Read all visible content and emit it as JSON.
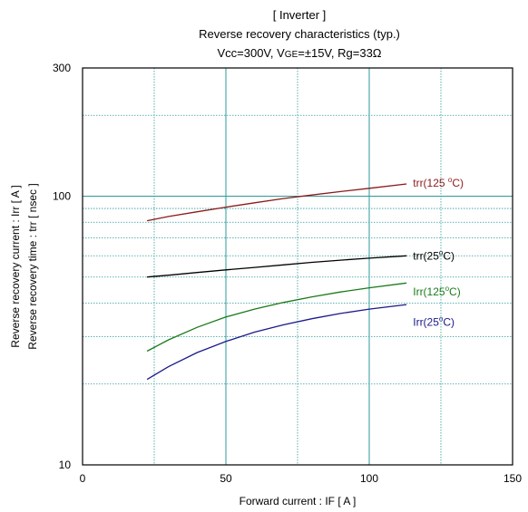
{
  "chart_data": {
    "type": "line",
    "title_lines": [
      "[ Inverter ]",
      "Reverse recovery characteristics  (typ.)"
    ],
    "conditions": {
      "vcc": "Vcc=300V, ",
      "vge_prefix": "V",
      "vge_sub": "GE",
      "vge_value": "=±15V, Rg=33Ω"
    },
    "xlabel": "Forward current  :  IF  [ A ]",
    "ylabel_lines": [
      "Reverse recovery current  :  Irr  [ A ]",
      "Reverse recovery time  :  trr  [ nsec ]"
    ],
    "xlim": [
      0,
      150
    ],
    "ylim": [
      10,
      300
    ],
    "yscale": "log",
    "x_ticks": [
      {
        "value": 0,
        "label": "0"
      },
      {
        "value": 50,
        "label": "50"
      },
      {
        "value": 100,
        "label": "100"
      },
      {
        "value": 150,
        "label": "150"
      }
    ],
    "y_ticks": [
      {
        "value": 10,
        "label": "10"
      },
      {
        "value": 100,
        "label": "100"
      },
      {
        "value": 300,
        "label": "300"
      }
    ],
    "grid": true,
    "series": [
      {
        "name": "trr(125 °C)",
        "color": "#8b1a1a",
        "points": [
          [
            22.5,
            81
          ],
          [
            30,
            84
          ],
          [
            40,
            87.5
          ],
          [
            50,
            91
          ],
          [
            60,
            94.5
          ],
          [
            70,
            98
          ],
          [
            80,
            101
          ],
          [
            90,
            104
          ],
          [
            100,
            107
          ],
          [
            113,
            111
          ]
        ]
      },
      {
        "name": "trr(25°C)",
        "color": "#000000",
        "points": [
          [
            22.5,
            50
          ],
          [
            30,
            50.8
          ],
          [
            40,
            52
          ],
          [
            50,
            53.2
          ],
          [
            60,
            54.3
          ],
          [
            70,
            55.5
          ],
          [
            80,
            56.7
          ],
          [
            90,
            57.8
          ],
          [
            100,
            58.8
          ],
          [
            113,
            60
          ]
        ]
      },
      {
        "name": "Irr(125°C)",
        "color": "#1a7a1a",
        "points": [
          [
            22.5,
            26.5
          ],
          [
            30,
            29.2
          ],
          [
            40,
            32.5
          ],
          [
            50,
            35.5
          ],
          [
            60,
            38
          ],
          [
            70,
            40.2
          ],
          [
            80,
            42.2
          ],
          [
            90,
            44
          ],
          [
            100,
            45.6
          ],
          [
            113,
            47.5
          ]
        ]
      },
      {
        "name": "Irr(25°C)",
        "color": "#1a1a8b",
        "points": [
          [
            22.5,
            20.8
          ],
          [
            30,
            23.2
          ],
          [
            40,
            26.2
          ],
          [
            50,
            28.8
          ],
          [
            60,
            31.2
          ],
          [
            70,
            33.2
          ],
          [
            80,
            35
          ],
          [
            90,
            36.6
          ],
          [
            100,
            38
          ],
          [
            113,
            39.5
          ]
        ]
      }
    ],
    "series_labels": [
      {
        "main": "trr(125 ",
        "sup": "o",
        "unit": "C)",
        "at": [
          114,
          112
        ]
      },
      {
        "main": "trr(25",
        "sup": "o",
        "unit": "C)",
        "at": [
          114,
          60
        ]
      },
      {
        "main": "Irr(125",
        "sup": "o",
        "unit": "C)",
        "at": [
          114,
          44
        ]
      },
      {
        "main": "Irr(25",
        "sup": "o",
        "unit": "C)",
        "at": [
          114,
          34
        ]
      }
    ]
  }
}
